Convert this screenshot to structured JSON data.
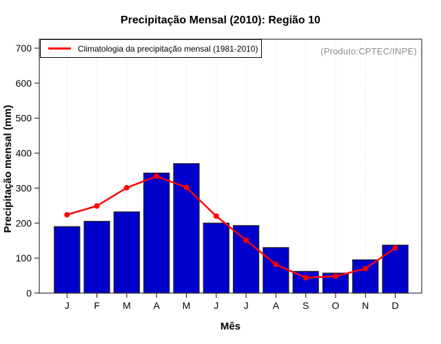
{
  "title": "Precipitação Mensal (2010): Região 10",
  "annotation": "(Produto:CPTEC/INPE)",
  "legend": {
    "label": "Climatologia da precipitação mensal (1981-2010)"
  },
  "colors": {
    "bar": "#0000CC",
    "bar_border": "#222222",
    "line": "#FF0000",
    "grid": "#D4D4D4",
    "axis": "#333333",
    "text": "#000000",
    "annotation": "#8C8C8C",
    "background": "#FFFFFF"
  },
  "chart_data": {
    "type": "bar",
    "title": "Precipitação Mensal (2010): Região 10",
    "xlabel": "Mês",
    "ylabel": "Precipitação mensal (mm)",
    "categories": [
      "J",
      "F",
      "M",
      "A",
      "M",
      "J",
      "J",
      "A",
      "S",
      "O",
      "N",
      "D"
    ],
    "yticks": [
      0,
      100,
      200,
      300,
      400,
      500,
      600,
      700
    ],
    "ylim": [
      0,
      700
    ],
    "grid": "vertical-dotted",
    "legend_position": "top-left",
    "series": [
      {
        "name": "Precipitação Mensal (2010)",
        "type": "bar",
        "values": [
          190,
          205,
          232,
          343,
          370,
          200,
          193,
          130,
          62,
          57,
          95,
          137
        ]
      },
      {
        "name": "Climatologia da precipitação mensal (1981-2010)",
        "type": "line",
        "values": [
          224,
          249,
          301,
          334,
          302,
          220,
          151,
          82,
          44,
          48,
          70,
          129
        ]
      }
    ]
  }
}
